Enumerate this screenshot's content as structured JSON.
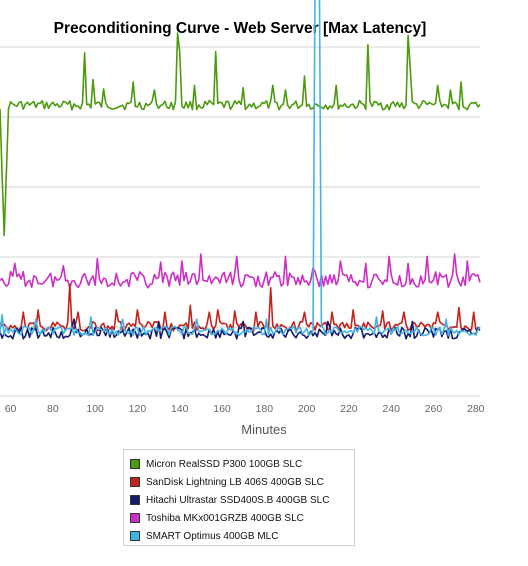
{
  "chart_data": {
    "type": "line",
    "title": "Preconditioning Curve - Web Server [Max Latency]",
    "xlabel": "Minutes",
    "ylabel": "",
    "x_ticks": [
      60,
      80,
      100,
      120,
      140,
      160,
      180,
      200,
      220,
      240,
      260,
      280
    ],
    "xlim": [
      55,
      282
    ],
    "grid": "horizontal",
    "legend_position": "bottom-center",
    "series": [
      {
        "name": "Micron RealSSD P300 100GB SLC",
        "color": "#4c9a0e",
        "base": 50,
        "noise": 4,
        "spikes": [
          [
            56,
            -60
          ],
          [
            57,
            -112
          ],
          [
            58,
            -60
          ],
          [
            95,
            45
          ],
          [
            99,
            22
          ],
          [
            104,
            14
          ],
          [
            118,
            20
          ],
          [
            128,
            13
          ],
          [
            139,
            62
          ],
          [
            140,
            46
          ],
          [
            147,
            17
          ],
          [
            157,
            46
          ],
          [
            170,
            15
          ],
          [
            184,
            17
          ],
          [
            190,
            13
          ],
          [
            199,
            25
          ],
          [
            214,
            17
          ],
          [
            229,
            52
          ],
          [
            248,
            60
          ],
          [
            249,
            32
          ],
          [
            262,
            17
          ],
          [
            268,
            13
          ],
          [
            273,
            20
          ]
        ]
      },
      {
        "name": "SanDisk Lightning LB 406S 400GB SLC",
        "color": "#c2231c",
        "base": 240,
        "noise": 4,
        "spikes": [
          [
            66,
            12
          ],
          [
            73,
            14
          ],
          [
            88,
            36
          ],
          [
            92,
            12
          ],
          [
            110,
            14
          ],
          [
            120,
            14
          ],
          [
            133,
            12
          ],
          [
            145,
            18
          ],
          [
            154,
            12
          ],
          [
            158,
            14
          ],
          [
            166,
            13
          ],
          [
            176,
            12
          ],
          [
            183,
            33
          ],
          [
            199,
            12
          ],
          [
            212,
            12
          ],
          [
            222,
            14
          ],
          [
            236,
            13
          ],
          [
            246,
            12
          ],
          [
            262,
            12
          ],
          [
            272,
            16
          ],
          [
            279,
            12
          ]
        ]
      },
      {
        "name": "Hitachi Ultrastar SSD400S.B 400GB SLC",
        "color": "#131c6b",
        "base": 246,
        "noise": 5,
        "spikes": [
          [
            90,
            12
          ],
          [
            130,
            10
          ],
          [
            170,
            10
          ],
          [
            210,
            10
          ],
          [
            250,
            10
          ]
        ]
      },
      {
        "name": "Toshiba MKx001GRZB 400GB SLC",
        "color": "#cc2fc4",
        "base": 200,
        "noise": 7,
        "spikes": [
          [
            62,
            14
          ],
          [
            85,
            12
          ],
          [
            101,
            18
          ],
          [
            131,
            15
          ],
          [
            141,
            16
          ],
          [
            150,
            22
          ],
          [
            167,
            20
          ],
          [
            190,
            20
          ],
          [
            203,
            10
          ],
          [
            216,
            16
          ],
          [
            228,
            14
          ],
          [
            239,
            20
          ],
          [
            248,
            14
          ],
          [
            257,
            20
          ],
          [
            270,
            22
          ],
          [
            276,
            16
          ]
        ]
      },
      {
        "name": "SMART Optimus 400GB MLC",
        "color": "#43b3e6",
        "base": 244,
        "noise": 4,
        "spikes": [
          [
            56,
            14
          ],
          [
            72,
            10
          ],
          [
            98,
            12
          ],
          [
            113,
            10
          ],
          [
            148,
            10
          ],
          [
            181,
            10
          ],
          [
            204,
            315
          ],
          [
            205,
            290
          ],
          [
            206,
            315
          ],
          [
            233,
            12
          ],
          [
            266,
            10
          ]
        ]
      }
    ]
  }
}
